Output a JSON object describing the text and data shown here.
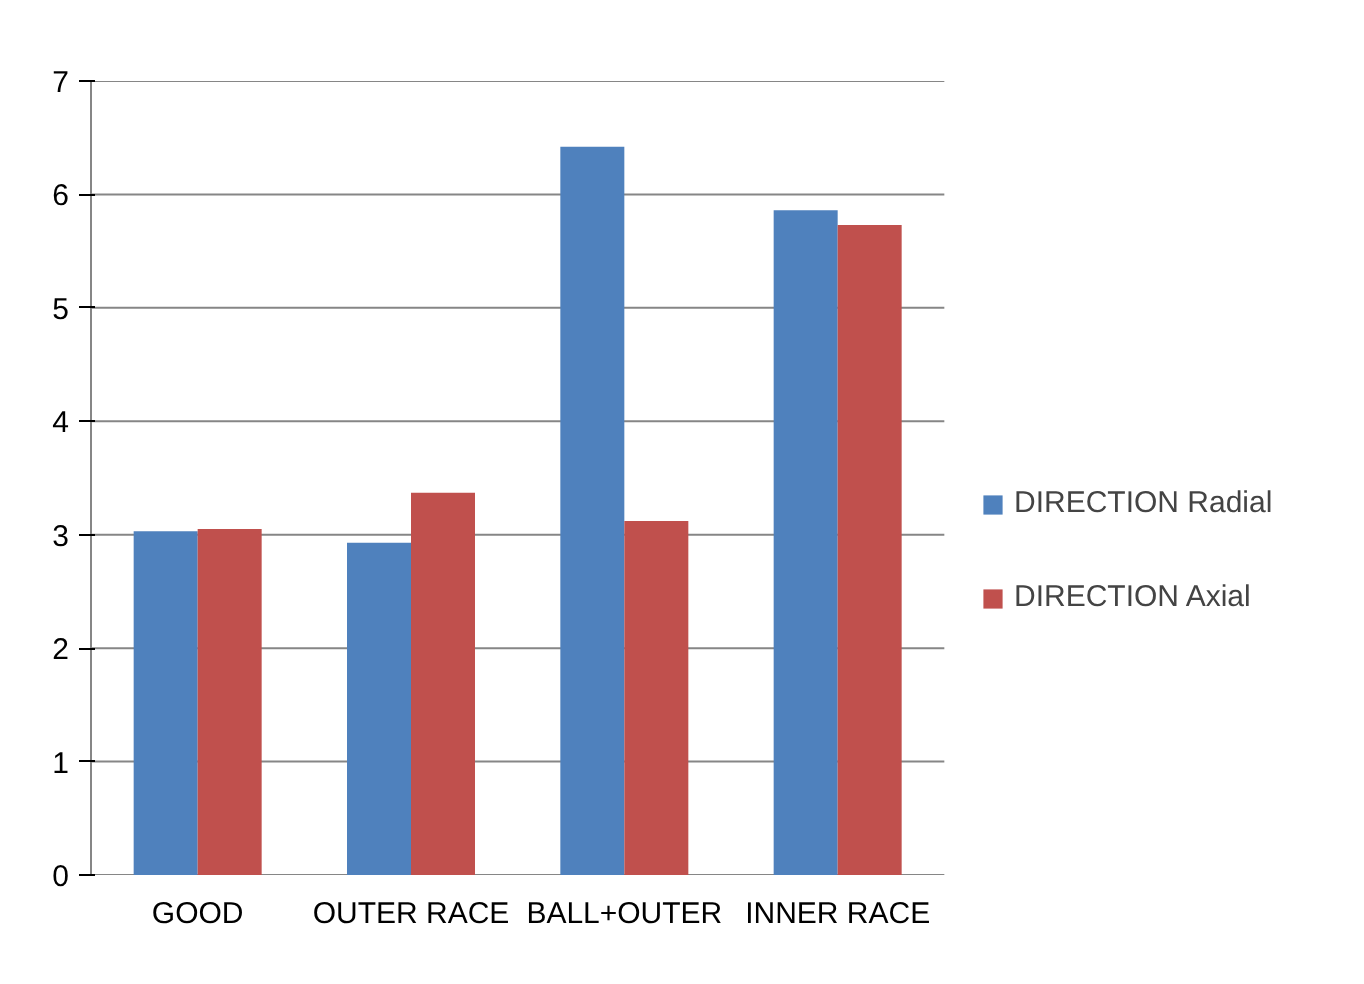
{
  "chart_data": {
    "type": "bar",
    "categories": [
      "GOOD",
      "OUTER RACE",
      "BALL+OUTER",
      "INNER RACE"
    ],
    "series": [
      {
        "name": "DIRECTION Radial",
        "color": "#4f81bd",
        "values": [
          3.03,
          2.93,
          6.42,
          5.86
        ]
      },
      {
        "name": "DIRECTION Axial",
        "color": "#c0504d",
        "values": [
          3.05,
          3.37,
          3.12,
          5.73
        ]
      }
    ],
    "ylim": [
      0,
      7
    ],
    "yticks": [
      0,
      1,
      2,
      3,
      4,
      5,
      6,
      7
    ],
    "grid": "y",
    "legend": "right"
  }
}
